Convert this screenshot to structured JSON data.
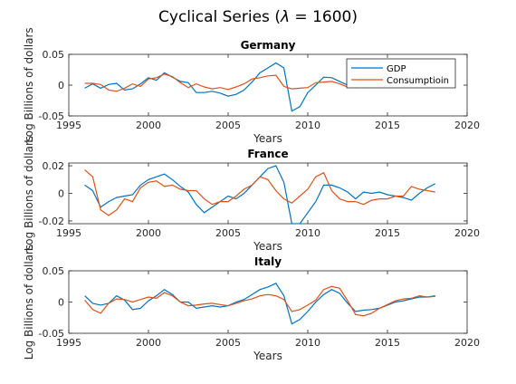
{
  "figure": {
    "title_main": "Cyclical Series (",
    "title_symbol": "λ",
    "title_rest": " = 1600)"
  },
  "colors": {
    "gdp": "#0072BD",
    "consumption": "#D95319",
    "axis": "#262626"
  },
  "chart_data": [
    {
      "type": "line",
      "title": "Germany",
      "xlabel": "Years",
      "ylabel": "Log Billions of dollars",
      "xlim": [
        1995,
        2020
      ],
      "ylim": [
        -0.05,
        0.05
      ],
      "xticks": [
        1995,
        2000,
        2005,
        2010,
        2015,
        2020
      ],
      "yticks": [
        -0.05,
        0,
        0.05
      ],
      "ytick_labels": [
        "-0.05",
        "0",
        "0.05"
      ],
      "legend": {
        "position": "top-right",
        "entries": [
          "GDP",
          "Consumptioin"
        ]
      },
      "x": [
        1996,
        1996.5,
        1997,
        1997.5,
        1998,
        1998.5,
        1999,
        1999.5,
        2000,
        2000.5,
        2001,
        2001.5,
        2002,
        2002.5,
        2003,
        2003.5,
        2004,
        2004.5,
        2005,
        2005.5,
        2006,
        2006.5,
        2007,
        2007.5,
        2008,
        2008.5,
        2009,
        2009.5,
        2010,
        2010.5,
        2011,
        2011.5,
        2012,
        2012.5,
        2013,
        2013.5,
        2014,
        2014.5,
        2015,
        2015.5,
        2016,
        2016.5,
        2017,
        2017.5,
        2018
      ],
      "series": [
        {
          "name": "GDP",
          "values": [
            -0.005,
            0.002,
            -0.005,
            0.001,
            0.003,
            -0.008,
            -0.006,
            0.002,
            0.012,
            0.008,
            0.02,
            0.013,
            0.006,
            0.004,
            -0.012,
            -0.012,
            -0.01,
            -0.013,
            -0.018,
            -0.015,
            -0.008,
            0.005,
            0.02,
            0.028,
            0.036,
            0.028,
            -0.042,
            -0.035,
            -0.012,
            0.0,
            0.013,
            0.012,
            0.006,
            0.0,
            -0.004,
            -0.002,
            0.0,
            0.001,
            0.001,
            0.001,
            0.0,
            0.0,
            0.0,
            0.0,
            0.0
          ]
        },
        {
          "name": "Consumptioin",
          "values": [
            0.003,
            0.003,
            0.001,
            -0.008,
            -0.01,
            -0.005,
            0.002,
            -0.002,
            0.01,
            0.012,
            0.018,
            0.014,
            0.004,
            -0.004,
            0.002,
            -0.003,
            -0.006,
            -0.004,
            -0.007,
            -0.003,
            0.002,
            0.01,
            0.012,
            0.015,
            0.016,
            -0.002,
            -0.006,
            -0.005,
            -0.004,
            0.004,
            0.005,
            0.006,
            0.002,
            -0.003,
            -0.001,
            -0.004,
            -0.003,
            -0.002,
            -0.001,
            -0.002,
            0.0,
            0.0,
            0.0,
            0.0,
            0.0
          ]
        }
      ]
    },
    {
      "type": "line",
      "title": "France",
      "xlabel": "Years",
      "ylabel": "Log Billions of dollars",
      "xlim": [
        1995,
        2020
      ],
      "ylim": [
        -0.022,
        0.022
      ],
      "xticks": [
        1995,
        2000,
        2005,
        2010,
        2015,
        2020
      ],
      "yticks": [
        -0.02,
        0,
        0.02
      ],
      "ytick_labels": [
        "-0.02",
        "0",
        "0.02"
      ],
      "x": [
        1996,
        1996.5,
        1997,
        1997.5,
        1998,
        1998.5,
        1999,
        1999.5,
        2000,
        2000.5,
        2001,
        2001.5,
        2002,
        2002.5,
        2003,
        2003.5,
        2004,
        2004.5,
        2005,
        2005.5,
        2006,
        2006.5,
        2007,
        2007.5,
        2008,
        2008.5,
        2009,
        2009.5,
        2010,
        2010.5,
        2011,
        2011.5,
        2012,
        2012.5,
        2013,
        2013.5,
        2014,
        2014.5,
        2015,
        2015.5,
        2016,
        2016.5,
        2017,
        2017.5,
        2018
      ],
      "series": [
        {
          "name": "GDP",
          "values": [
            0.006,
            0.002,
            -0.01,
            -0.006,
            -0.003,
            -0.002,
            -0.001,
            0.006,
            0.01,
            0.012,
            0.014,
            0.01,
            0.005,
            0.001,
            -0.008,
            -0.014,
            -0.01,
            -0.006,
            -0.002,
            -0.004,
            0.0,
            0.006,
            0.012,
            0.018,
            0.02,
            0.008,
            -0.022,
            -0.022,
            -0.014,
            -0.006,
            0.006,
            0.006,
            0.004,
            0.001,
            -0.004,
            0.001,
            0.0,
            0.001,
            -0.001,
            -0.002,
            -0.003,
            -0.005,
            0.0,
            0.004,
            0.007
          ]
        },
        {
          "name": "Consumptioin",
          "values": [
            0.017,
            0.012,
            -0.012,
            -0.016,
            -0.012,
            -0.004,
            -0.006,
            0.004,
            0.008,
            0.009,
            0.005,
            0.006,
            0.003,
            0.002,
            0.002,
            -0.004,
            -0.008,
            -0.006,
            -0.006,
            -0.002,
            0.003,
            0.006,
            0.012,
            0.01,
            0.002,
            -0.004,
            -0.007,
            -0.002,
            0.003,
            0.012,
            0.015,
            0.002,
            -0.004,
            -0.006,
            -0.006,
            -0.008,
            -0.005,
            -0.004,
            -0.004,
            -0.002,
            -0.002,
            0.005,
            0.003,
            0.002,
            0.001
          ]
        }
      ]
    },
    {
      "type": "line",
      "title": "Italy",
      "xlabel": "Years",
      "ylabel": "Log Billions of dollars",
      "xlim": [
        1995,
        2020
      ],
      "ylim": [
        -0.05,
        0.05
      ],
      "xticks": [
        1995,
        2000,
        2005,
        2010,
        2015,
        2020
      ],
      "yticks": [
        -0.05,
        0,
        0.05
      ],
      "ytick_labels": [
        "-0.05",
        "0",
        "0.05"
      ],
      "x": [
        1996,
        1996.5,
        1997,
        1997.5,
        1998,
        1998.5,
        1999,
        1999.5,
        2000,
        2000.5,
        2001,
        2001.5,
        2002,
        2002.5,
        2003,
        2003.5,
        2004,
        2004.5,
        2005,
        2005.5,
        2006,
        2006.5,
        2007,
        2007.5,
        2008,
        2008.5,
        2009,
        2009.5,
        2010,
        2010.5,
        2011,
        2011.5,
        2012,
        2012.5,
        2013,
        2013.5,
        2014,
        2014.5,
        2015,
        2015.5,
        2016,
        2016.5,
        2017,
        2017.5,
        2018
      ],
      "series": [
        {
          "name": "GDP",
          "values": [
            0.01,
            -0.002,
            -0.005,
            -0.002,
            0.01,
            0.003,
            -0.012,
            -0.01,
            0.002,
            0.01,
            0.02,
            0.012,
            0.0,
            0.0,
            -0.01,
            -0.008,
            -0.006,
            -0.008,
            -0.006,
            0.0,
            0.004,
            0.012,
            0.02,
            0.024,
            0.03,
            0.01,
            -0.035,
            -0.028,
            -0.015,
            0.0,
            0.012,
            0.02,
            0.014,
            -0.002,
            -0.015,
            -0.013,
            -0.012,
            -0.01,
            -0.005,
            0.0,
            0.002,
            0.005,
            0.008,
            0.008,
            0.01
          ]
        },
        {
          "name": "Consumptioin",
          "values": [
            0.003,
            -0.012,
            -0.018,
            -0.002,
            0.005,
            0.004,
            0.0,
            0.004,
            0.008,
            0.006,
            0.015,
            0.01,
            0.0,
            -0.006,
            -0.005,
            -0.003,
            -0.002,
            -0.004,
            -0.006,
            -0.002,
            0.002,
            0.005,
            0.01,
            0.012,
            0.01,
            0.004,
            -0.015,
            -0.012,
            -0.005,
            0.003,
            0.02,
            0.025,
            0.022,
            0.002,
            -0.02,
            -0.022,
            -0.018,
            -0.01,
            -0.004,
            0.002,
            0.005,
            0.006,
            0.01,
            0.008,
            0.009
          ]
        }
      ]
    }
  ]
}
